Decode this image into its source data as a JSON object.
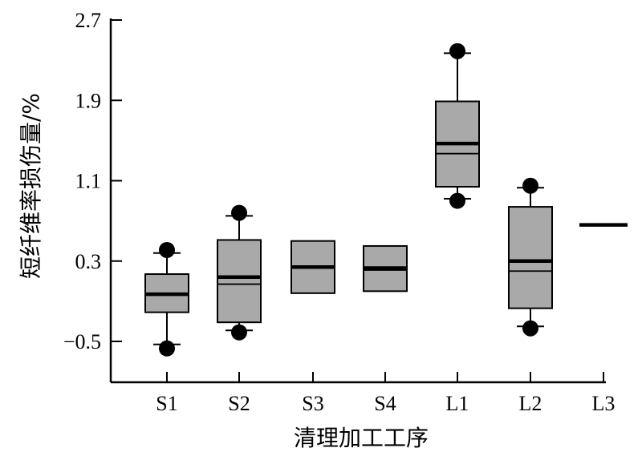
{
  "chart_data": {
    "type": "box",
    "xlabel": "清理加工工序",
    "ylabel": "短纤维率损伤量/%",
    "ylim": [
      -0.9,
      2.7
    ],
    "yticks": [
      -0.5,
      0.3,
      1.1,
      1.9,
      2.7
    ],
    "ytick_labels": [
      "−0.5",
      "0.3",
      "1.1",
      "1.9",
      "2.7"
    ],
    "grid": false,
    "categories": [
      "S1",
      "S2",
      "S3",
      "S4",
      "L1",
      "L2",
      "L3"
    ],
    "boxes": [
      {
        "label": "S1",
        "whisker_low": -0.53,
        "q1": -0.21,
        "median": -0.03,
        "mean": -0.03,
        "q3": 0.17,
        "whisker_high": 0.38,
        "outliers": [
          -0.57,
          0.41
        ]
      },
      {
        "label": "S2",
        "whisker_low": -0.39,
        "q1": -0.31,
        "median": 0.07,
        "mean": 0.14,
        "q3": 0.51,
        "whisker_high": 0.75,
        "outliers": [
          -0.41,
          0.78
        ]
      },
      {
        "label": "S3",
        "whisker_low": null,
        "q1": -0.02,
        "median": 0.24,
        "mean": 0.24,
        "q3": 0.5,
        "whisker_high": null,
        "outliers": []
      },
      {
        "label": "S4",
        "whisker_low": null,
        "q1": 0.0,
        "median": 0.21,
        "mean": 0.23,
        "q3": 0.45,
        "whisker_high": null,
        "outliers": []
      },
      {
        "label": "L1",
        "whisker_low": 0.92,
        "q1": 1.04,
        "median": 1.37,
        "mean": 1.47,
        "q3": 1.89,
        "whisker_high": 2.37,
        "outliers": [
          0.9,
          2.39
        ]
      },
      {
        "label": "L2",
        "whisker_low": -0.35,
        "q1": -0.17,
        "median": 0.2,
        "mean": 0.3,
        "q3": 0.84,
        "whisker_high": 1.03,
        "outliers": [
          -0.37,
          1.05
        ]
      },
      {
        "label": "L3",
        "whisker_low": null,
        "q1": null,
        "median": 0.66,
        "mean": 0.66,
        "q3": null,
        "whisker_high": null,
        "outliers": []
      }
    ],
    "colors": {
      "box_fill": "#a9a9a9",
      "stroke": "#000000"
    }
  }
}
